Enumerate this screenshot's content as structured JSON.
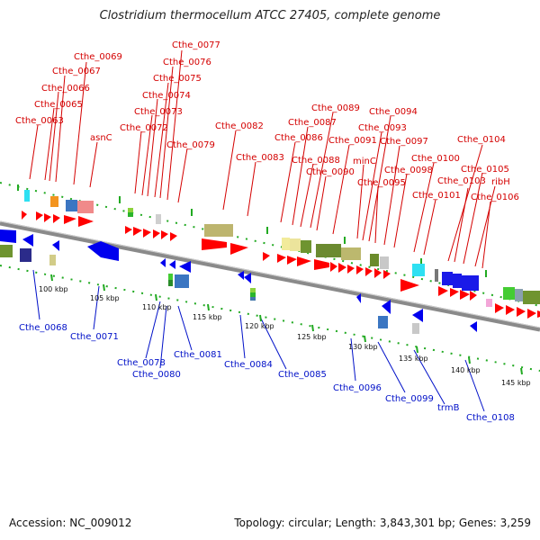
{
  "title": "Clostridium thermocellum ATCC 27405, complete genome",
  "footer": {
    "accession": "Accession: NC_009012",
    "topology": "Topology: circular; Length: 3,843,301 bp; Genes: 3,259"
  },
  "top_labels": [
    {
      "id": "t63",
      "text": "Cthe_0063",
      "color": "#d40000"
    },
    {
      "id": "t65",
      "text": "Cthe_0065",
      "color": "#d40000"
    },
    {
      "id": "t66",
      "text": "Cthe_0066",
      "color": "#d40000"
    },
    {
      "id": "t67",
      "text": "Cthe_0067",
      "color": "#d40000"
    },
    {
      "id": "t69",
      "text": "Cthe_0069",
      "color": "#d40000"
    },
    {
      "id": "tasnC",
      "text": "asnC",
      "color": "#d40000"
    },
    {
      "id": "t72",
      "text": "Cthe_0072",
      "color": "#d40000"
    },
    {
      "id": "t73",
      "text": "Cthe_0073",
      "color": "#d40000"
    },
    {
      "id": "t74",
      "text": "Cthe_0074",
      "color": "#d40000"
    },
    {
      "id": "t75",
      "text": "Cthe_0075",
      "color": "#d40000"
    },
    {
      "id": "t76",
      "text": "Cthe_0076",
      "color": "#d40000"
    },
    {
      "id": "t77",
      "text": "Cthe_0077",
      "color": "#d40000"
    },
    {
      "id": "t79",
      "text": "Cthe_0079",
      "color": "#d40000"
    },
    {
      "id": "t82",
      "text": "Cthe_0082",
      "color": "#d40000"
    },
    {
      "id": "t83",
      "text": "Cthe_0083",
      "color": "#d40000"
    },
    {
      "id": "t86",
      "text": "Cthe_0086",
      "color": "#d40000"
    },
    {
      "id": "t87",
      "text": "Cthe_0087",
      "color": "#d40000"
    },
    {
      "id": "t88",
      "text": "Cthe_0088",
      "color": "#d40000"
    },
    {
      "id": "t89",
      "text": "Cthe_0089",
      "color": "#d40000"
    },
    {
      "id": "t90",
      "text": "Cthe_0090",
      "color": "#d40000"
    },
    {
      "id": "t91",
      "text": "Cthe_0091",
      "color": "#d40000"
    },
    {
      "id": "tminC",
      "text": "minC",
      "color": "#d40000"
    },
    {
      "id": "t93",
      "text": "Cthe_0093",
      "color": "#d40000"
    },
    {
      "id": "t94",
      "text": "Cthe_0094",
      "color": "#d40000"
    },
    {
      "id": "t95",
      "text": "Cthe_0095",
      "color": "#d40000"
    },
    {
      "id": "t97",
      "text": "Cthe_0097",
      "color": "#d40000"
    },
    {
      "id": "t98",
      "text": "Cthe_0098",
      "color": "#d40000"
    },
    {
      "id": "t100",
      "text": "Cthe_0100",
      "color": "#d40000"
    },
    {
      "id": "t101",
      "text": "Cthe_0101",
      "color": "#d40000"
    },
    {
      "id": "t103",
      "text": "Cthe_0103",
      "color": "#d40000"
    },
    {
      "id": "t104",
      "text": "Cthe_0104",
      "color": "#d40000"
    },
    {
      "id": "t105",
      "text": "Cthe_0105",
      "color": "#d40000"
    },
    {
      "id": "tribH",
      "text": "ribH",
      "color": "#d40000"
    },
    {
      "id": "t106",
      "text": "Cthe_0106",
      "color": "#d40000"
    }
  ],
  "bottom_labels": [
    {
      "id": "b68",
      "text": "Cthe_0068",
      "color": "#0010c8"
    },
    {
      "id": "b71",
      "text": "Cthe_0071",
      "color": "#0010c8"
    },
    {
      "id": "b78",
      "text": "Cthe_0078",
      "color": "#0010c8"
    },
    {
      "id": "b80",
      "text": "Cthe_0080",
      "color": "#0010c8"
    },
    {
      "id": "b81",
      "text": "Cthe_0081",
      "color": "#0010c8"
    },
    {
      "id": "b84",
      "text": "Cthe_0084",
      "color": "#0010c8"
    },
    {
      "id": "b85",
      "text": "Cthe_0085",
      "color": "#0010c8"
    },
    {
      "id": "b96",
      "text": "Cthe_0096",
      "color": "#0010c8"
    },
    {
      "id": "b99",
      "text": "Cthe_0099",
      "color": "#0010c8"
    },
    {
      "id": "btrmB",
      "text": "trmB",
      "color": "#0010c8"
    },
    {
      "id": "b108",
      "text": "Cthe_0108",
      "color": "#0010c8"
    }
  ],
  "scale_ticks": [
    "100 kbp",
    "105 kbp",
    "110 kbp",
    "115 kbp",
    "120 kbp",
    "125 kbp",
    "130 kbp",
    "135 kbp",
    "140 kbp",
    "145 kbp"
  ],
  "colors": {
    "forward_cds": "#ff0000",
    "reverse_cds": "#0000ee",
    "backbone": "#8a8a8a",
    "dotted_track": "#22aa22",
    "label_forward": "#d40000",
    "label_reverse": "#0010c8"
  }
}
